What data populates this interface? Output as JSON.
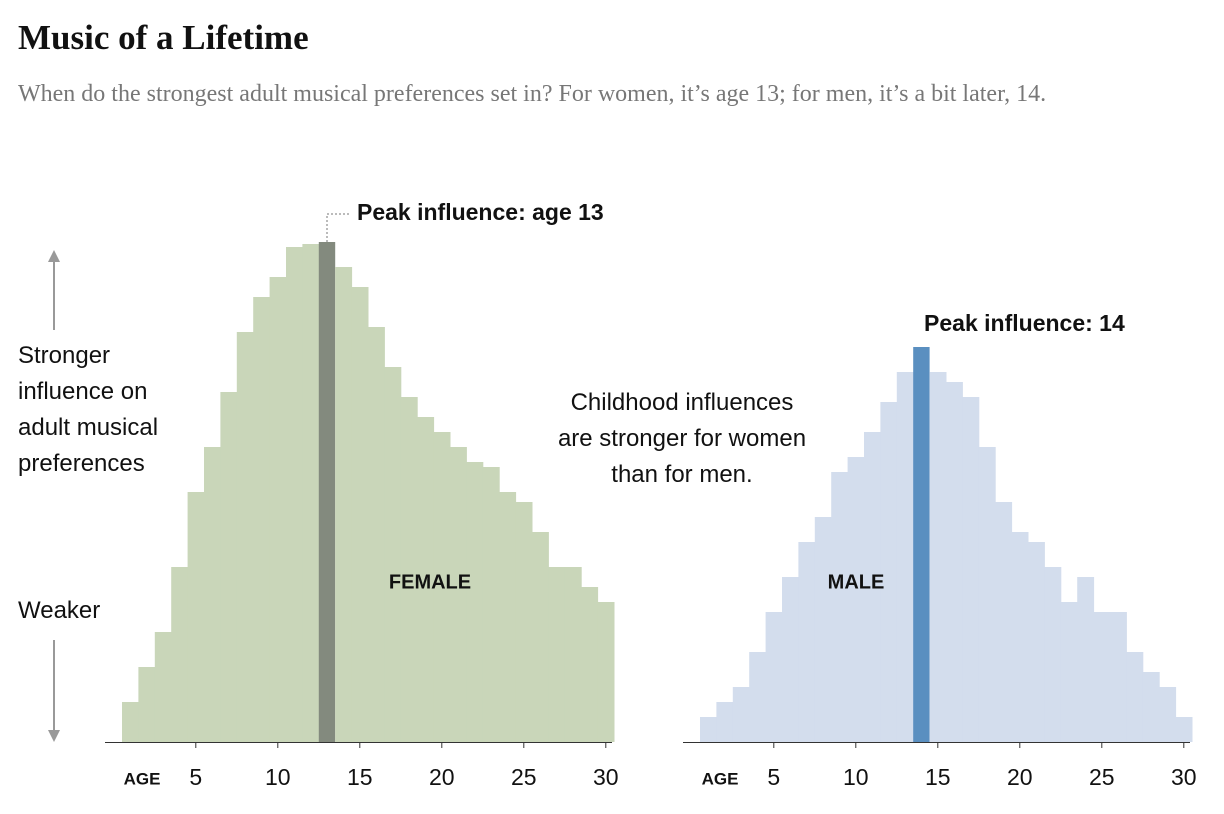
{
  "title": "Music of a Lifetime",
  "subtitle": "When do the strongest adult musical preferences set in? For women, it’s age 13; for men, it’s a bit later, 14.",
  "y_label_strong": "Stronger influence on adult musical preferences",
  "y_label_weak": "Weaker",
  "note": "Childhood influences are stronger for women than for men.",
  "chart_data": [
    {
      "type": "bar",
      "label": "FEMALE",
      "peak_label": "Peak influence: age 13",
      "x_label": "AGE",
      "x": [
        1,
        2,
        3,
        4,
        5,
        6,
        7,
        8,
        9,
        10,
        11,
        12,
        13,
        14,
        15,
        16,
        17,
        18,
        19,
        20,
        21,
        22,
        23,
        24,
        25,
        26,
        27,
        28,
        29,
        30
      ],
      "values": [
        8,
        15,
        22,
        35,
        50,
        59,
        70,
        82,
        89,
        93,
        99,
        99.6,
        100,
        95,
        91,
        83,
        75,
        69,
        65,
        62,
        59,
        56,
        55,
        50,
        48,
        42,
        35,
        35,
        31,
        28
      ],
      "color": "#c9d6b9",
      "highlight_color": "#838a7e",
      "xlim": [
        0.5,
        30.5
      ],
      "xticks": [
        5,
        10,
        15,
        20,
        25,
        30
      ],
      "ylim": [
        0,
        100
      ]
    },
    {
      "type": "bar",
      "label": "MALE",
      "peak_label": "Peak influence: 14",
      "x_label": "AGE",
      "x": [
        1,
        2,
        3,
        4,
        5,
        6,
        7,
        8,
        9,
        10,
        11,
        12,
        13,
        14,
        15,
        16,
        17,
        18,
        19,
        20,
        21,
        22,
        23,
        24,
        25,
        26,
        27,
        28,
        29,
        30
      ],
      "values": [
        5,
        8,
        11,
        18,
        26,
        33,
        40,
        45,
        54,
        57,
        62,
        68,
        74,
        79,
        74,
        72,
        69,
        59,
        48,
        42,
        40,
        35,
        28,
        33,
        26,
        26,
        18,
        14,
        11,
        5
      ],
      "color": "#d3dded",
      "highlight_color": "#5a8fc0",
      "xlim": [
        0.5,
        30.5
      ],
      "xticks": [
        5,
        10,
        15,
        20,
        25,
        30
      ],
      "ylim": [
        0,
        100
      ]
    }
  ]
}
